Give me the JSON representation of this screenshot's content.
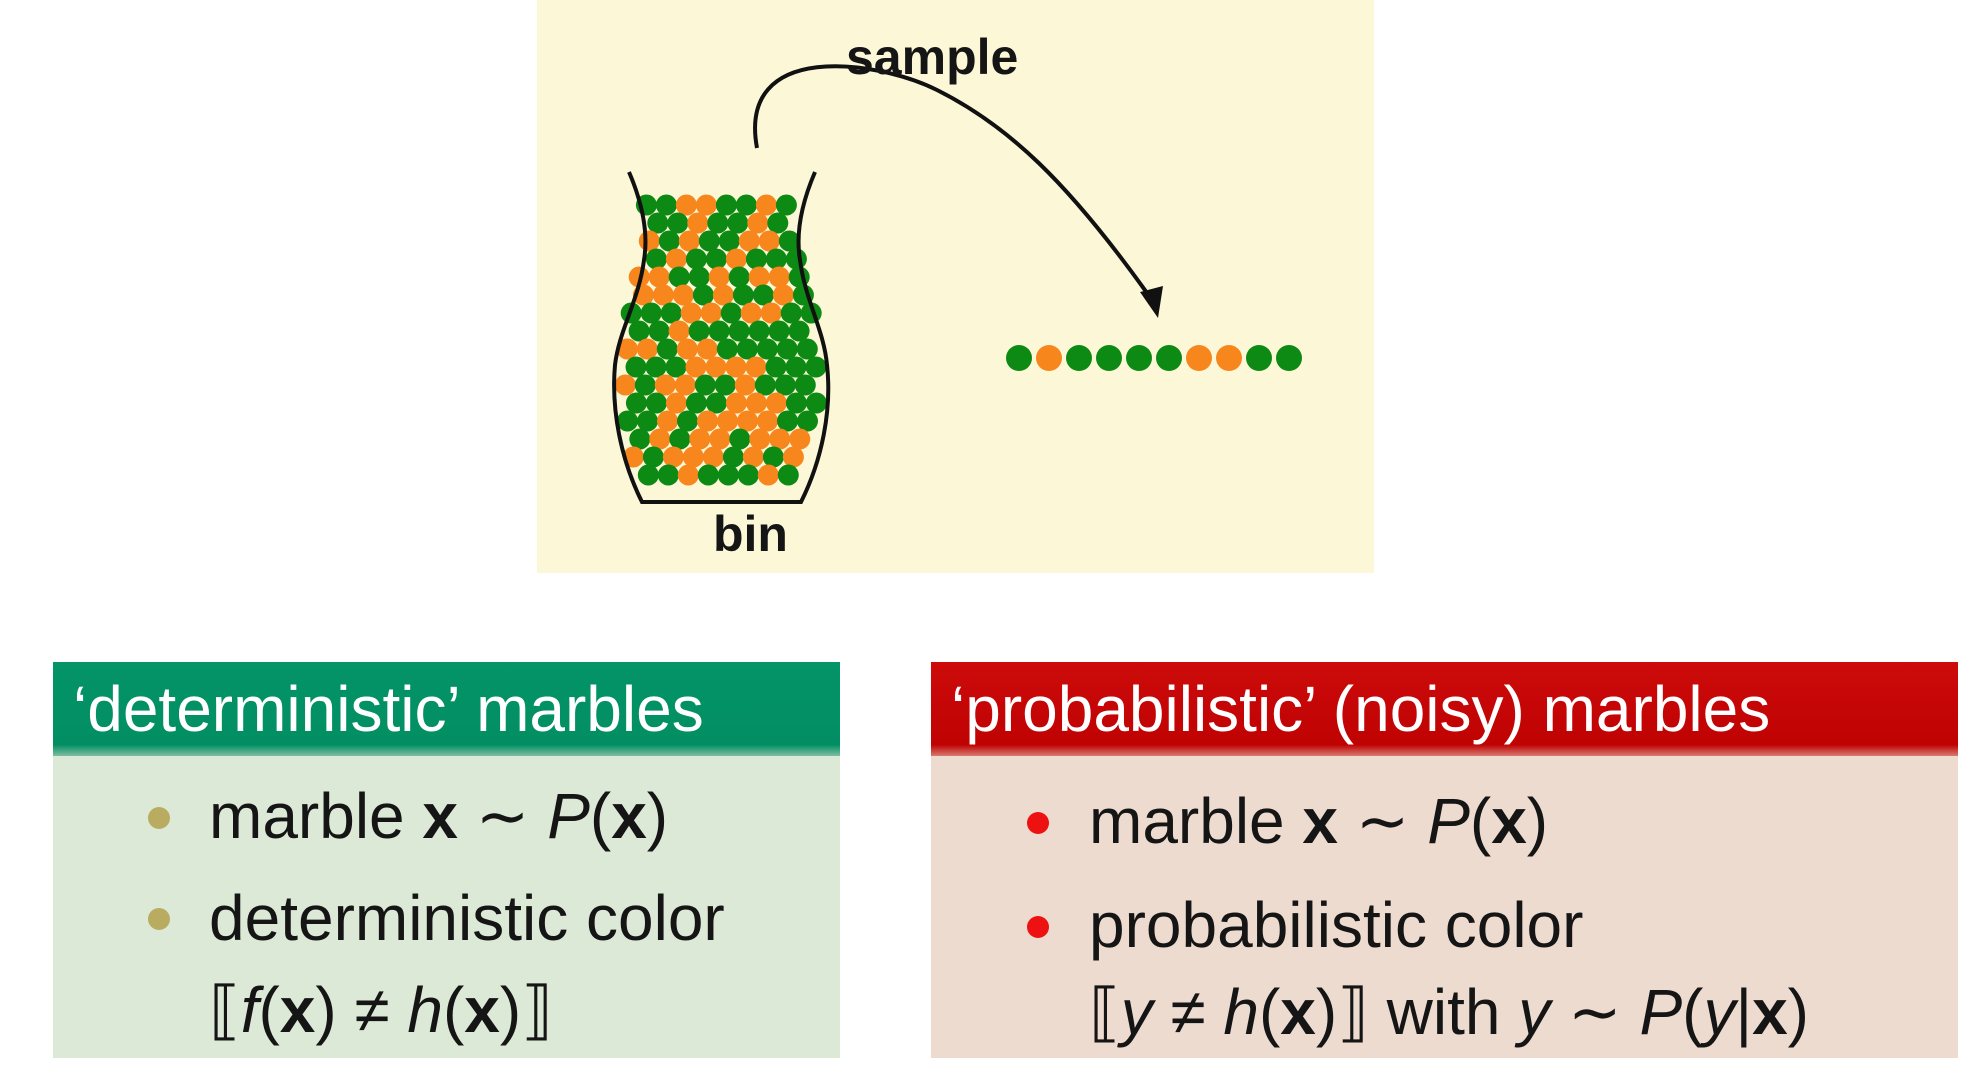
{
  "diagram": {
    "sample_label": "sample",
    "bin_label": "bin",
    "colors": {
      "panel_background": "#fcf8d7",
      "marble_green": "#0c8a13",
      "marble_orange": "#f7861c",
      "outline": "#111111"
    },
    "sampled_marbles": [
      "green",
      "orange",
      "green",
      "green",
      "green",
      "green",
      "orange",
      "orange",
      "green",
      "green"
    ]
  },
  "deterministic_box": {
    "title": "‘deterministic’ marbles",
    "header_color": "#039468",
    "body_color": "#dce9d7",
    "bullet_color": "#b9ac61",
    "bullets": [
      {
        "text_marble": "marble ",
        "text_x": "x",
        "text_sim": " ∼ ",
        "text_p": "P",
        "text_open": "(",
        "text_x2": "x",
        "text_close": ")"
      },
      {
        "line1": "deterministic color",
        "open_bracket": "⟦",
        "f": "f",
        "paren_open": "(",
        "x": "x",
        "paren_close": ")",
        "neq": " ≠ ",
        "h": "h",
        "paren_open2": "(",
        "x2": "x",
        "paren_close2": ")",
        "close_bracket": "⟧"
      }
    ]
  },
  "probabilistic_box": {
    "title": "‘probabilistic’ (noisy) marbles",
    "header_color": "#bf0202",
    "body_color": "#eddbd0",
    "bullet_color": "#ee1111",
    "bullets": [
      {
        "text_marble": "marble ",
        "text_x": "x",
        "text_sim": " ∼ ",
        "text_p": "P",
        "text_open": "(",
        "text_x2": "x",
        "text_close": ")"
      },
      {
        "line1": "probabilistic color",
        "open_bracket": "⟦",
        "y": "y",
        "neq": " ≠ ",
        "h": "h",
        "paren_open": "(",
        "x": "x",
        "paren_close": ")",
        "close_bracket": "⟧",
        "with": " with ",
        "y2": "y",
        "sim": " ∼ ",
        "p": "P",
        "paren_open2": "(",
        "y3": "y",
        "bar": "|",
        "x2": "x",
        "paren_close2": ")"
      }
    ]
  }
}
